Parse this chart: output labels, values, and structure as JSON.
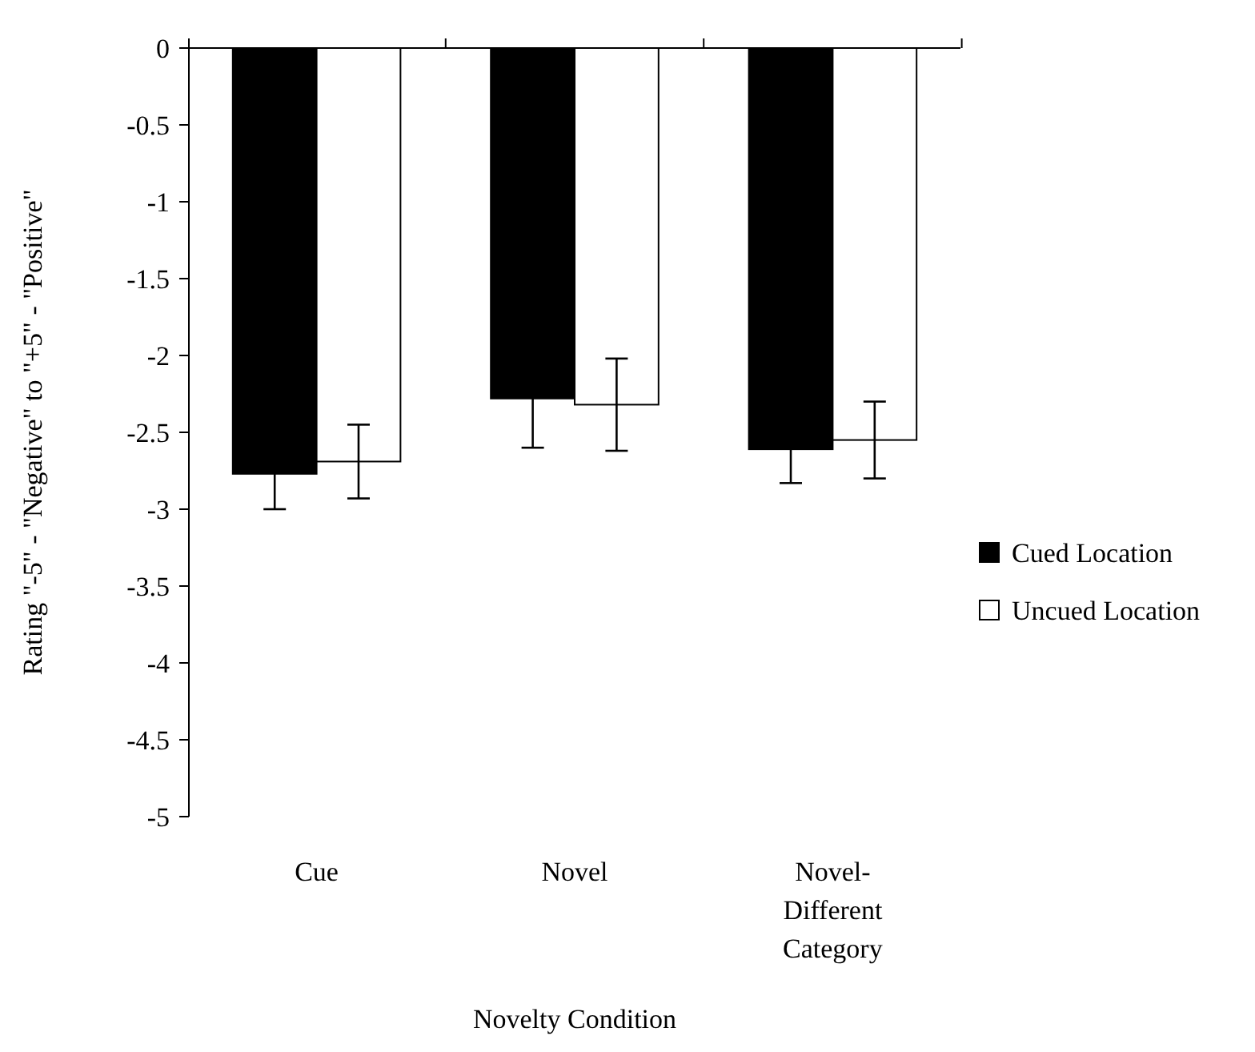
{
  "chart_data": {
    "type": "bar",
    "xlabel": "Novelty Condition",
    "ylabel": "Rating \"-5\" - \"Negative\" to \"+5\" - \"Positive\"",
    "categories": [
      "Cue",
      "Novel",
      "Novel-\nDifferent\nCategory"
    ],
    "series": [
      {
        "name": "Cued Location",
        "color": "#000000",
        "values": [
          -2.77,
          -2.28,
          -2.61
        ],
        "errors": [
          0.23,
          0.32,
          0.22
        ]
      },
      {
        "name": "Uncued Location",
        "color": "#ffffff",
        "values": [
          -2.69,
          -2.32,
          -2.55
        ],
        "errors": [
          0.24,
          0.3,
          0.25
        ]
      }
    ],
    "ylim": [
      -5,
      0
    ],
    "yticks": [
      0,
      -0.5,
      -1,
      -1.5,
      -2,
      -2.5,
      -3,
      -3.5,
      -4,
      -4.5,
      -5
    ],
    "legend": "right",
    "grid": false
  }
}
